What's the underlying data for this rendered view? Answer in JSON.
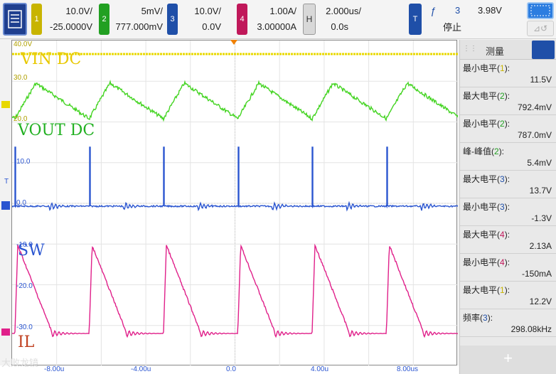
{
  "toolbar": {
    "channels": [
      {
        "num": "1",
        "scale": "10.0V/",
        "offset": "-25.0000V",
        "color": "#c8b400"
      },
      {
        "num": "2",
        "scale": "5mV/",
        "offset": "777.000mV",
        "color": "#22a022"
      },
      {
        "num": "3",
        "scale": "10.0V/",
        "offset": "0.0V",
        "color": "#1f4fa8"
      },
      {
        "num": "4",
        "scale": "1.00A/",
        "offset": "3.00000A",
        "color": "#c0185a"
      }
    ],
    "horizontal": {
      "label": "H",
      "scale": "2.000us/",
      "offset": "0.0s"
    },
    "trigger": {
      "label": "T",
      "slope": "ƒ",
      "source": "3",
      "level": "3.98V",
      "status": "停止"
    }
  },
  "scope": {
    "ch1_scale_labels": [
      "40.0V",
      "30.0",
      "20.0"
    ],
    "ch3_scale_labels": [
      "10.0",
      "0.0",
      "-10.0",
      "-20.0",
      "-30.0"
    ],
    "trace_labels": {
      "vin": "VIN DC",
      "vout": "VOUT DC",
      "sw": "SW",
      "il": "IL"
    },
    "time_labels": [
      "-8.00u",
      "-4.00u",
      "0.0",
      "4.00u",
      "8.00us"
    ],
    "watermark": "大败龙镜",
    "colors": {
      "ch1": "#e8d800",
      "ch2": "#44d422",
      "ch3": "#2a55d0",
      "ch4": "#e0208a"
    }
  },
  "panel": {
    "title": "测量",
    "items": [
      {
        "label": "最小电平",
        "ch": "1",
        "value": "11.5V",
        "ch_color": "#c8b400"
      },
      {
        "label": "最大电平",
        "ch": "2",
        "value": "792.4mV",
        "ch_color": "#22a022"
      },
      {
        "label": "最小电平",
        "ch": "2",
        "value": "787.0mV",
        "ch_color": "#22a022"
      },
      {
        "label": "峰-峰值",
        "ch": "2",
        "value": "5.4mV",
        "ch_color": "#22a022"
      },
      {
        "label": "最大电平",
        "ch": "3",
        "value": "13.7V",
        "ch_color": "#1f4fa8"
      },
      {
        "label": "最小电平",
        "ch": "3",
        "value": "-1.3V",
        "ch_color": "#1f4fa8"
      },
      {
        "label": "最大电平",
        "ch": "4",
        "value": "2.13A",
        "ch_color": "#c0185a"
      },
      {
        "label": "最小电平",
        "ch": "4",
        "value": "-150mA",
        "ch_color": "#c0185a"
      },
      {
        "label": "最大电平",
        "ch": "1",
        "value": "12.2V",
        "ch_color": "#c8b400"
      },
      {
        "label": "频率",
        "ch": "3",
        "value": "298.08kHz",
        "ch_color": "#1f4fa8"
      }
    ],
    "add_label": "+"
  }
}
